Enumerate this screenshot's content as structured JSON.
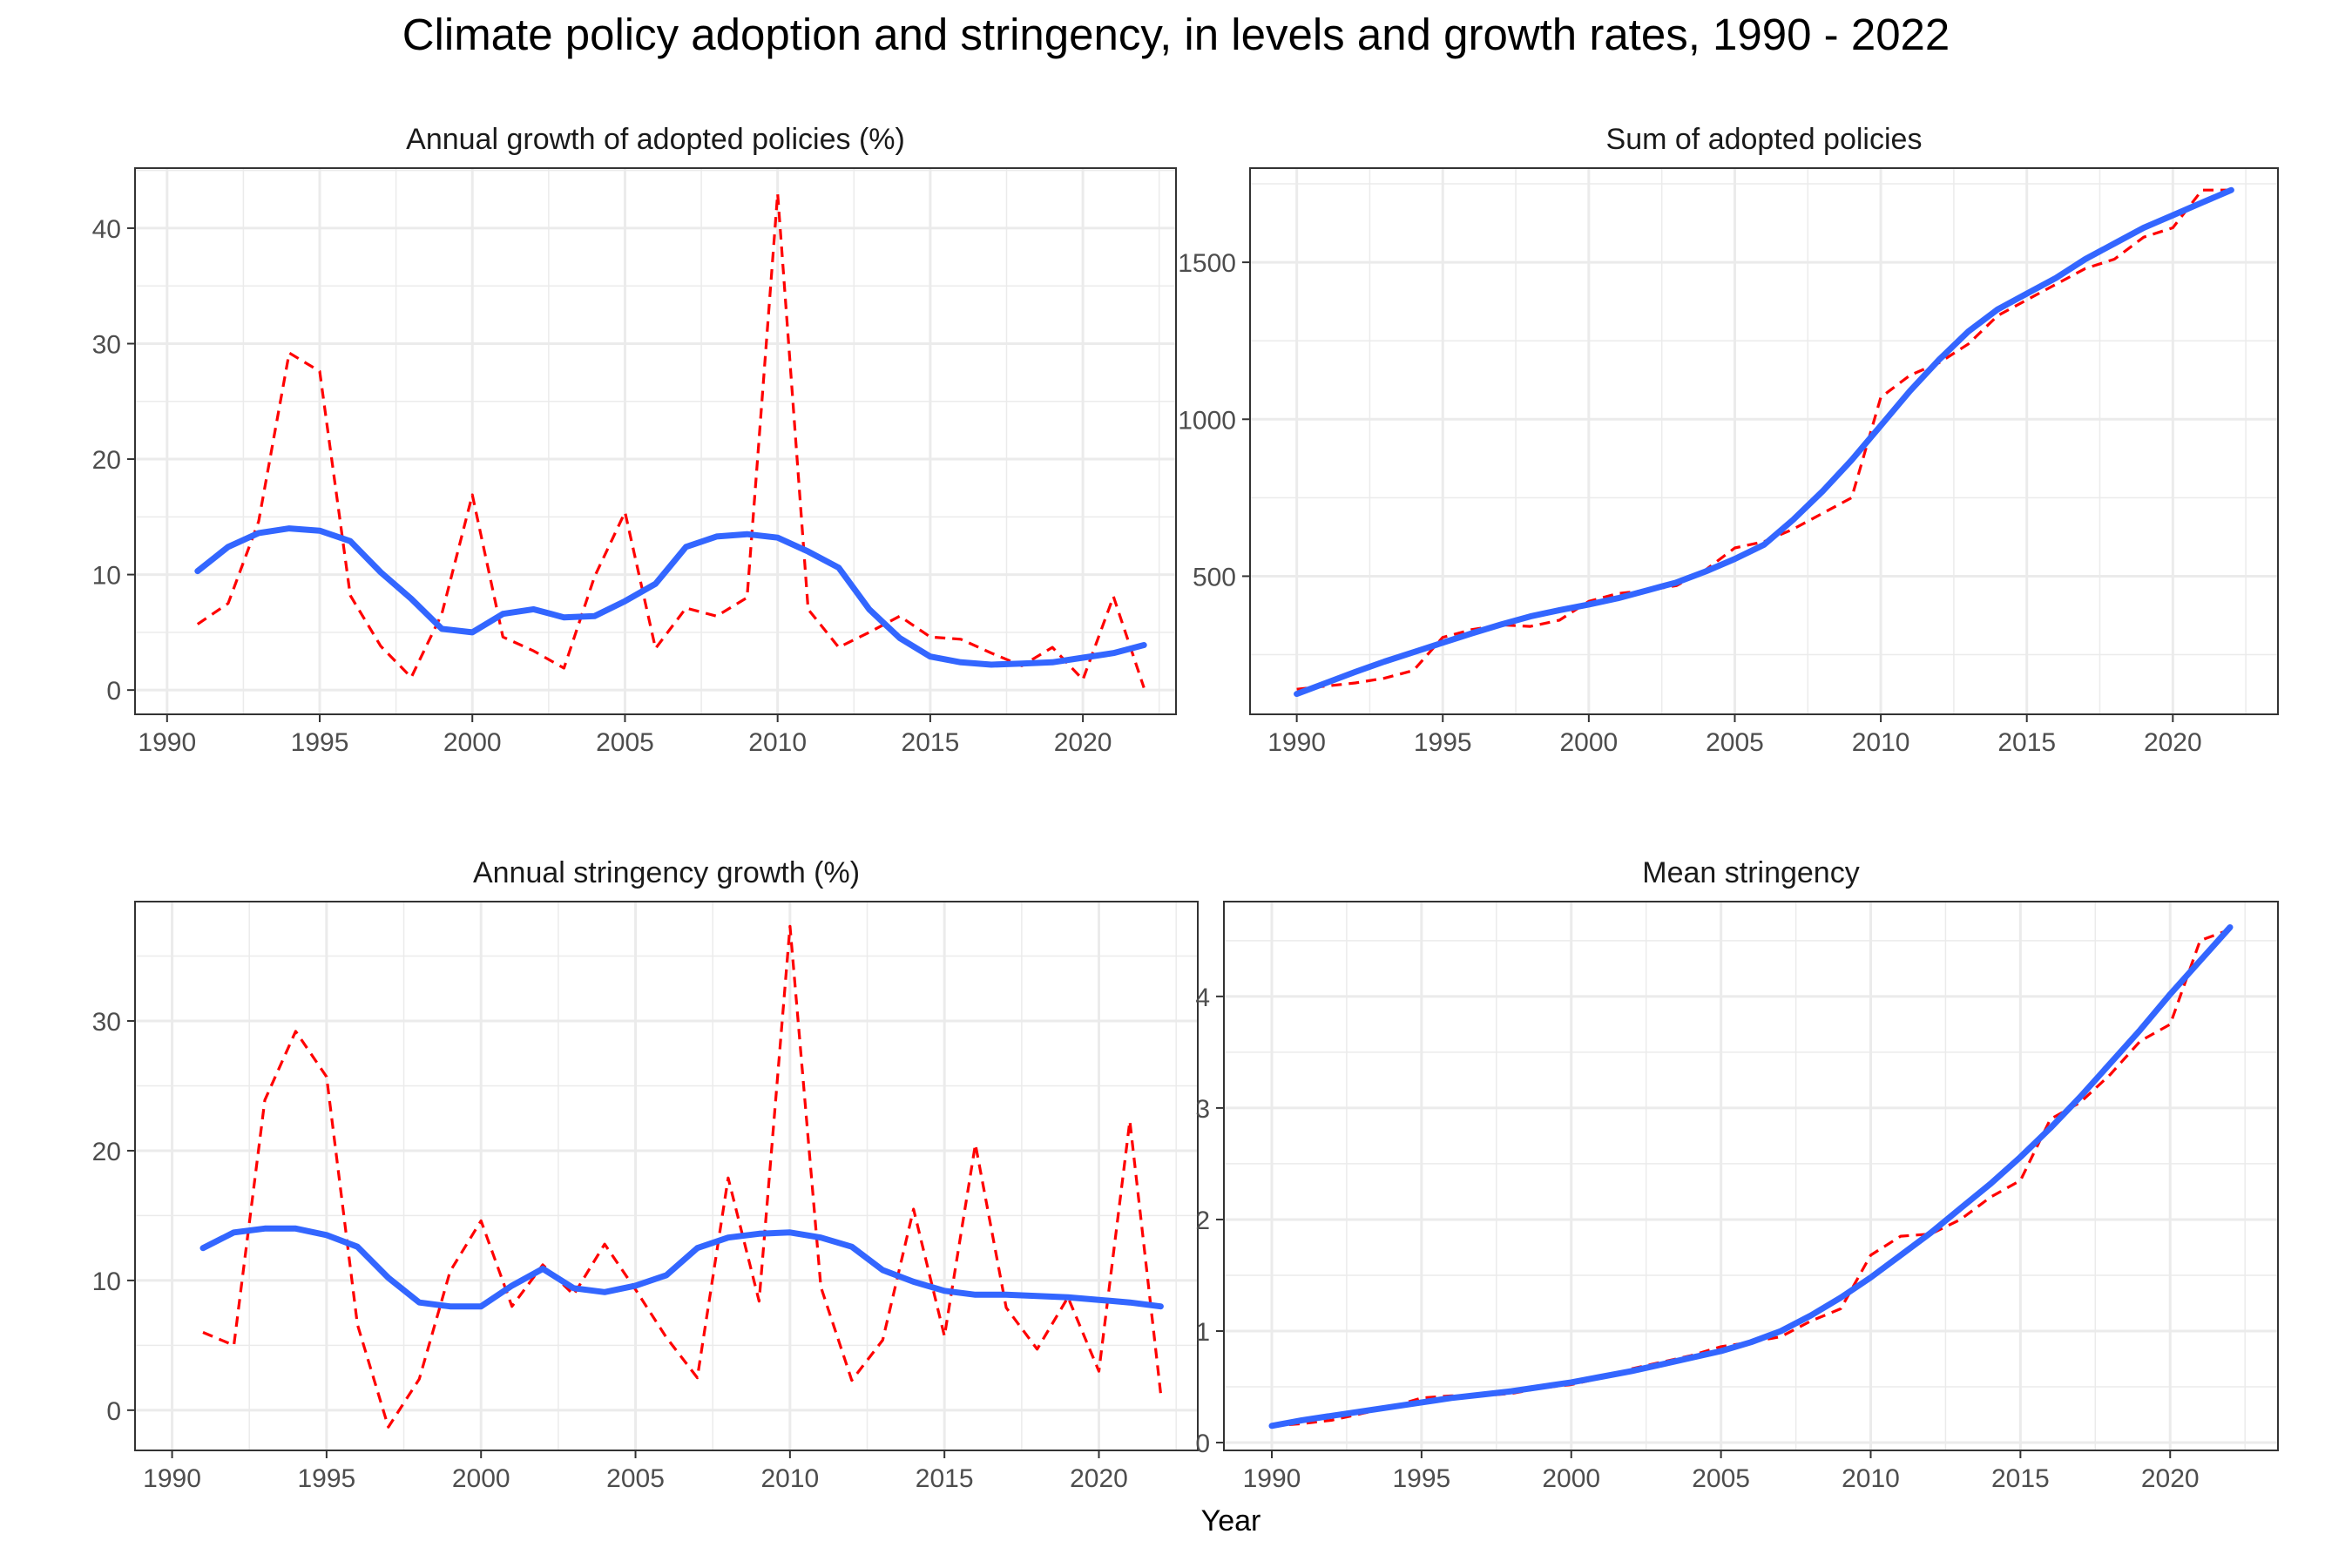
{
  "title": "Climate policy adoption and stringency, in levels and growth rates, 1990 - 2022",
  "xlabel": "Year",
  "colors": {
    "observed": "#ff0000",
    "smoothed": "#3366ff",
    "grid": "#ebebeb",
    "border": "#333333"
  },
  "chart_data": [
    {
      "type": "line",
      "title": "Annual growth of adopted policies (%)",
      "x_ticks": [
        1990,
        1995,
        2000,
        2005,
        2010,
        2015,
        2020
      ],
      "y_ticks": [
        0,
        10,
        20,
        30,
        40
      ],
      "xlim": [
        1988.95,
        2023.05
      ],
      "ylim": [
        -2.1,
        45.2
      ],
      "series": [
        {
          "style": "dashed",
          "color": "#ff0000",
          "x": [
            1991,
            1992,
            1993,
            1994,
            1995,
            1996,
            1997,
            1998,
            1999,
            2000,
            2001,
            2002,
            2003,
            2004,
            2005,
            2006,
            2007,
            2008,
            2009,
            2010,
            2011,
            2012,
            2013,
            2014,
            2015,
            2016,
            2017,
            2018,
            2019,
            2020,
            2021,
            2022
          ],
          "y": [
            5.7,
            7.5,
            14.6,
            29.2,
            27.6,
            8.2,
            3.8,
            1.1,
            6.6,
            16.9,
            4.6,
            3.4,
            1.9,
            9.8,
            15.4,
            3.6,
            7.1,
            6.4,
            8.0,
            43.0,
            7.0,
            3.7,
            5.0,
            6.4,
            4.6,
            4.4,
            3.2,
            2.1,
            3.7,
            0.9,
            8.1,
            0.2
          ]
        },
        {
          "style": "solid",
          "color": "#3366ff",
          "x": [
            1991,
            1992,
            1993,
            1994,
            1995,
            1996,
            1997,
            1998,
            1999,
            2000,
            2001,
            2002,
            2003,
            2004,
            2005,
            2006,
            2007,
            2008,
            2009,
            2010,
            2011,
            2012,
            2013,
            2014,
            2015,
            2016,
            2017,
            2018,
            2019,
            2020,
            2021,
            2022
          ],
          "y": [
            10.3,
            12.4,
            13.6,
            14.0,
            13.8,
            12.9,
            10.2,
            7.9,
            5.3,
            5.0,
            6.6,
            7.0,
            6.3,
            6.4,
            7.7,
            9.2,
            12.4,
            13.3,
            13.5,
            13.2,
            12.0,
            10.6,
            7.0,
            4.5,
            2.9,
            2.4,
            2.2,
            2.3,
            2.4,
            2.8,
            3.2,
            3.9
          ]
        }
      ]
    },
    {
      "type": "line",
      "title": "Sum of adopted policies",
      "x_ticks": [
        1990,
        1995,
        2000,
        2005,
        2010,
        2015,
        2020
      ],
      "y_ticks": [
        500,
        1000,
        1500
      ],
      "xlim": [
        1988.4,
        2023.6
      ],
      "ylim": [
        60,
        1800
      ],
      "series": [
        {
          "style": "dashed",
          "color": "#ff0000",
          "x": [
            1990,
            1991,
            1992,
            1993,
            1994,
            1995,
            1996,
            1997,
            1998,
            1999,
            2000,
            2001,
            2002,
            2003,
            2004,
            2005,
            2006,
            2007,
            2008,
            2009,
            2010,
            2011,
            2012,
            2013,
            2014,
            2015,
            2016,
            2017,
            2018,
            2019,
            2020,
            2021,
            2022
          ],
          "y": [
            140,
            150,
            160,
            175,
            200,
            305,
            330,
            345,
            340,
            360,
            420,
            445,
            455,
            470,
            520,
            590,
            610,
            650,
            700,
            750,
            1070,
            1140,
            1180,
            1240,
            1330,
            1380,
            1430,
            1480,
            1510,
            1580,
            1610,
            1730,
            1730
          ]
        },
        {
          "style": "solid",
          "color": "#3366ff",
          "x": [
            1990,
            1991,
            1992,
            1993,
            1994,
            1995,
            1996,
            1997,
            1998,
            1999,
            2000,
            2001,
            2002,
            2003,
            2004,
            2005,
            2006,
            2007,
            2008,
            2009,
            2010,
            2011,
            2012,
            2013,
            2014,
            2015,
            2016,
            2017,
            2018,
            2019,
            2020,
            2021,
            2022
          ],
          "y": [
            125,
            160,
            195,
            228,
            258,
            288,
            318,
            346,
            372,
            392,
            410,
            430,
            455,
            480,
            515,
            555,
            600,
            680,
            770,
            870,
            980,
            1090,
            1190,
            1280,
            1350,
            1400,
            1450,
            1510,
            1560,
            1610,
            1650,
            1690,
            1730
          ]
        }
      ]
    },
    {
      "type": "line",
      "title": "Annual stringency growth (%)",
      "x_ticks": [
        1990,
        1995,
        2000,
        2005,
        2010,
        2015,
        2020
      ],
      "y_ticks": [
        0,
        10,
        20,
        30
      ],
      "xlim": [
        1988.8,
        2023.2
      ],
      "ylim": [
        -3.1,
        39.2
      ],
      "series": [
        {
          "style": "dashed",
          "color": "#ff0000",
          "x": [
            1991,
            1992,
            1993,
            1994,
            1995,
            1996,
            1997,
            1998,
            1999,
            2000,
            2001,
            2002,
            2003,
            2004,
            2005,
            2006,
            2007,
            2008,
            2009,
            2010,
            2011,
            2012,
            2013,
            2014,
            2015,
            2016,
            2017,
            2018,
            2019,
            2020,
            2021,
            2022
          ],
          "y": [
            6.0,
            5.0,
            23.9,
            29.2,
            25.7,
            6.6,
            -1.3,
            2.4,
            10.7,
            14.6,
            8.0,
            11.2,
            8.9,
            12.8,
            9.3,
            5.6,
            2.5,
            17.9,
            8.4,
            37.3,
            9.5,
            2.3,
            5.4,
            15.5,
            5.7,
            20.5,
            7.9,
            4.7,
            8.7,
            3.0,
            22.3,
            1.3
          ]
        },
        {
          "style": "solid",
          "color": "#3366ff",
          "x": [
            1991,
            1992,
            1993,
            1994,
            1995,
            1996,
            1997,
            1998,
            1999,
            2000,
            2001,
            2002,
            2003,
            2004,
            2005,
            2006,
            2007,
            2008,
            2009,
            2010,
            2011,
            2012,
            2013,
            2014,
            2015,
            2016,
            2017,
            2018,
            2019,
            2020,
            2021,
            2022
          ],
          "y": [
            12.5,
            13.7,
            14.0,
            14.0,
            13.5,
            12.6,
            10.2,
            8.3,
            8.0,
            8.0,
            9.6,
            10.9,
            9.4,
            9.1,
            9.6,
            10.4,
            12.5,
            13.3,
            13.6,
            13.7,
            13.3,
            12.6,
            10.8,
            9.9,
            9.2,
            8.9,
            8.9,
            8.8,
            8.7,
            8.5,
            8.3,
            8.0
          ]
        }
      ]
    },
    {
      "type": "line",
      "title": "Mean stringency",
      "x_ticks": [
        1990,
        1995,
        2000,
        2005,
        2010,
        2015,
        2020
      ],
      "y_ticks": [
        0,
        1,
        2,
        3,
        4
      ],
      "xlim": [
        1988.4,
        2023.6
      ],
      "ylim": [
        -0.07,
        4.85
      ],
      "series": [
        {
          "style": "dashed",
          "color": "#ff0000",
          "x": [
            1990,
            1991,
            1992,
            1993,
            1994,
            1995,
            1996,
            1997,
            1998,
            1999,
            2000,
            2001,
            2002,
            2003,
            2004,
            2005,
            2006,
            2007,
            2008,
            2009,
            2010,
            2011,
            2012,
            2013,
            2014,
            2015,
            2016,
            2017,
            2018,
            2019,
            2020,
            2021,
            2022
          ],
          "y": [
            0.15,
            0.17,
            0.2,
            0.26,
            0.32,
            0.4,
            0.42,
            0.42,
            0.44,
            0.49,
            0.52,
            0.58,
            0.66,
            0.72,
            0.78,
            0.86,
            0.9,
            0.95,
            1.09,
            1.2,
            1.68,
            1.85,
            1.87,
            2.0,
            2.2,
            2.35,
            2.9,
            3.05,
            3.3,
            3.6,
            3.75,
            4.5,
            4.6
          ]
        },
        {
          "style": "solid",
          "color": "#3366ff",
          "x": [
            1990,
            1991,
            1992,
            1993,
            1994,
            1995,
            1996,
            1997,
            1998,
            1999,
            2000,
            2001,
            2002,
            2003,
            2004,
            2005,
            2006,
            2007,
            2008,
            2009,
            2010,
            2011,
            2012,
            2013,
            2014,
            2015,
            2016,
            2017,
            2018,
            2019,
            2020,
            2021,
            2022
          ],
          "y": [
            0.15,
            0.2,
            0.24,
            0.28,
            0.32,
            0.36,
            0.4,
            0.43,
            0.46,
            0.5,
            0.54,
            0.59,
            0.64,
            0.7,
            0.76,
            0.82,
            0.9,
            1.0,
            1.14,
            1.3,
            1.48,
            1.68,
            1.88,
            2.1,
            2.32,
            2.56,
            2.82,
            3.1,
            3.4,
            3.7,
            4.02,
            4.32,
            4.62
          ]
        }
      ]
    }
  ]
}
